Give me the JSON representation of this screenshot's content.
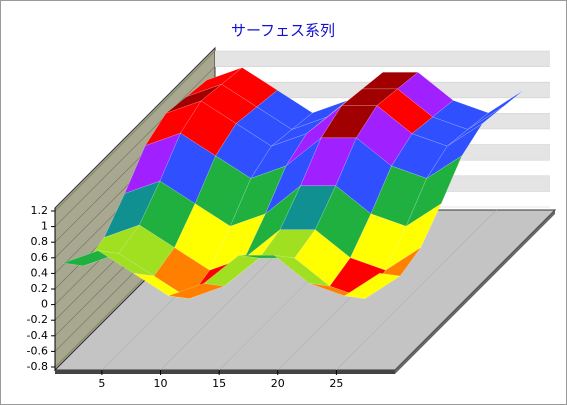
{
  "chart_data": {
    "type": "surface",
    "title": "サーフェス系列",
    "x": [
      1,
      4,
      7,
      10,
      13,
      16,
      19,
      22,
      25,
      28
    ],
    "values": [
      [
        0.43,
        0.59,
        0.3,
        0.01,
        0.17,
        0.53,
        0.53,
        0.17,
        0.01,
        0.3
      ],
      [
        0.13,
        0.29,
        0,
        -0.29,
        -0.13,
        0.23,
        0.23,
        -0.13,
        -0.29,
        0
      ],
      [
        0.23,
        0.39,
        0.1,
        -0.19,
        -0.03,
        0.33,
        0.33,
        -0.03,
        -0.19,
        0.1
      ],
      [
        0.53,
        0.69,
        0.4,
        0.11,
        0.27,
        0.63,
        0.63,
        0.27,
        0.11,
        0.4
      ],
      [
        0.88,
        1.04,
        0.75,
        0.46,
        0.62,
        0.98,
        0.98,
        0.62,
        0.46,
        0.75
      ],
      [
        1.03,
        1.19,
        0.9,
        0.61,
        0.77,
        1.13,
        1.13,
        0.77,
        0.61,
        0.9
      ],
      [
        0.98,
        1.14,
        0.85,
        0.56,
        0.72,
        1.08,
        1.08,
        0.72,
        0.56,
        0.85
      ],
      [
        0.93,
        1.09,
        0.8,
        0.51,
        0.67,
        1.03,
        1.03,
        0.67,
        0.51,
        0.8
      ]
    ],
    "colors": [
      "#ff0000",
      "#ff8000",
      "#ffff00",
      "#a0e020",
      "#20b040",
      "#109090",
      "#3050ff",
      "#a020ff",
      "#ff0000",
      "#a00000"
    ],
    "xlim": [
      1,
      30
    ],
    "xticks": [
      5,
      10,
      15,
      20,
      25
    ],
    "ylim": [
      -0.8,
      1.2
    ],
    "yticks": [
      -0.8,
      -0.6,
      -0.4,
      -0.2,
      0,
      0.2,
      0.4,
      0.6,
      0.8,
      1,
      1.2
    ],
    "grid": true
  }
}
